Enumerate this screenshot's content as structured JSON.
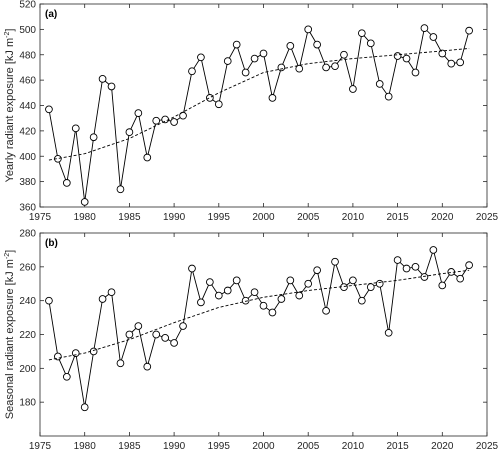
{
  "chart_data": [
    {
      "type": "line",
      "panel_label": "(a)",
      "ylabel": "Yearly radiant exposure",
      "yunit": "[kJ m",
      "yunit_exp": "-2",
      "yunit_close": "]",
      "xlabel": "",
      "xlim": [
        1975,
        2025
      ],
      "ylim": [
        360,
        520
      ],
      "xticks": [
        1975,
        1980,
        1985,
        1990,
        1995,
        2000,
        2005,
        2010,
        2015,
        2020,
        2025
      ],
      "yticks": [
        360,
        380,
        400,
        420,
        440,
        460,
        480,
        500,
        520
      ],
      "grid": false,
      "series": [
        {
          "style": "solid-with-circle-markers",
          "x": [
            1976,
            1977,
            1978,
            1979,
            1980,
            1981,
            1982,
            1983,
            1984,
            1985,
            1986,
            1987,
            1988,
            1989,
            1990,
            1991,
            1992,
            1993,
            1994,
            1995,
            1996,
            1997,
            1998,
            1999,
            2000,
            2001,
            2002,
            2003,
            2004,
            2005,
            2006,
            2007,
            2008,
            2009,
            2010,
            2011,
            2012,
            2013,
            2014,
            2015,
            2016,
            2017,
            2018,
            2019,
            2020,
            2021,
            2022,
            2023
          ],
          "y": [
            437,
            398,
            379,
            422,
            364,
            415,
            461,
            455,
            374,
            419,
            434,
            399,
            428,
            429,
            427,
            432,
            467,
            478,
            446,
            441,
            475,
            488,
            466,
            477,
            481,
            446,
            470,
            487,
            469,
            500,
            488,
            470,
            471,
            480,
            453,
            497,
            489,
            457,
            447,
            479,
            477,
            466,
            501,
            494,
            481,
            473,
            474,
            499
          ]
        },
        {
          "style": "dashed-trend",
          "x": [
            1976,
            1980,
            1985,
            1990,
            1995,
            2000,
            2005,
            2010,
            2015,
            2020,
            2023
          ],
          "y": [
            397,
            402,
            414,
            431,
            450,
            466,
            473,
            477,
            480,
            483,
            485
          ]
        }
      ]
    },
    {
      "type": "line",
      "panel_label": "(b)",
      "ylabel": "Seasonal radiant exposure",
      "yunit": "[kJ m",
      "yunit_exp": "-2",
      "yunit_close": "]",
      "xlabel": "",
      "xlim": [
        1975,
        2025
      ],
      "ylim": [
        160,
        280
      ],
      "xticks": [
        1975,
        1980,
        1985,
        1990,
        1995,
        2000,
        2005,
        2010,
        2015,
        2020,
        2025
      ],
      "yticks": [
        180,
        200,
        220,
        240,
        260,
        280
      ],
      "grid": false,
      "series": [
        {
          "style": "solid-with-circle-markers",
          "x": [
            1976,
            1977,
            1978,
            1979,
            1980,
            1981,
            1982,
            1983,
            1984,
            1985,
            1986,
            1987,
            1988,
            1989,
            1990,
            1991,
            1992,
            1993,
            1994,
            1995,
            1996,
            1997,
            1998,
            1999,
            2000,
            2001,
            2002,
            2003,
            2004,
            2005,
            2006,
            2007,
            2008,
            2009,
            2010,
            2011,
            2012,
            2013,
            2014,
            2015,
            2016,
            2017,
            2018,
            2019,
            2020,
            2021,
            2022,
            2023
          ],
          "y": [
            240,
            207,
            195,
            209,
            177,
            210,
            241,
            245,
            203,
            220,
            225,
            201,
            220,
            218,
            215,
            225,
            259,
            239,
            251,
            243,
            246,
            252,
            240,
            245,
            237,
            233,
            241,
            252,
            243,
            250,
            258,
            234,
            263,
            248,
            252,
            240,
            248,
            250,
            221,
            264,
            259,
            260,
            254,
            270,
            249,
            257,
            253,
            261
          ]
        },
        {
          "style": "dashed-trend",
          "x": [
            1976,
            1980,
            1985,
            1990,
            1995,
            2000,
            2005,
            2010,
            2015,
            2020,
            2023
          ],
          "y": [
            205,
            209,
            217,
            227,
            236,
            242,
            246,
            249,
            252,
            256,
            258
          ]
        }
      ]
    }
  ],
  "colors": {
    "line": "#000000",
    "marker_edge": "#000000",
    "marker_face": "#ffffff",
    "axis": "#262626"
  }
}
